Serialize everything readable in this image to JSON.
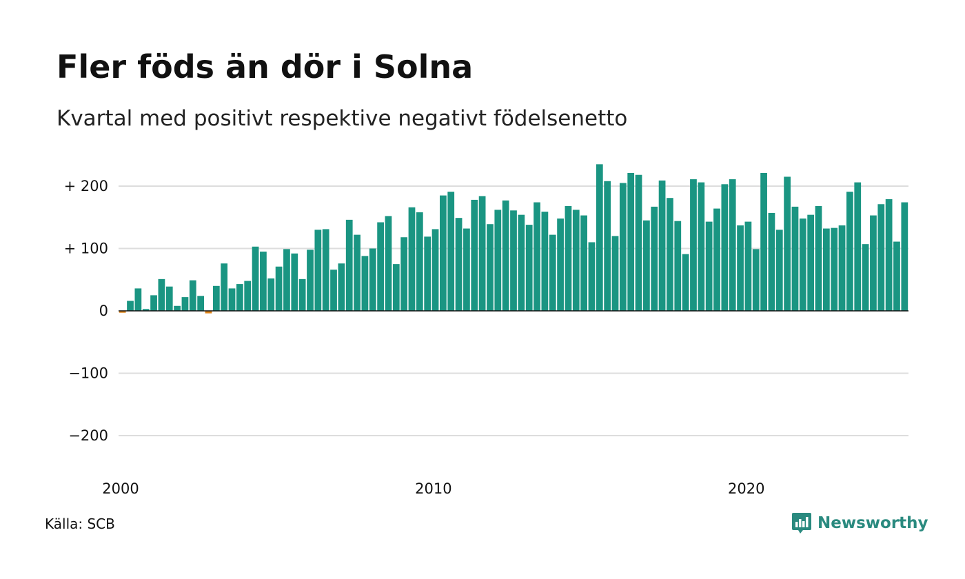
{
  "title": "Fler föds än dör i Solna",
  "subtitle": "Kvartal med positivt respektive negativt födelsenetto",
  "source": "Källa: SCB",
  "brand": {
    "name": "Newsworthy",
    "icon": "newsworthy-chart-bubble-icon",
    "color": "#2a8a7f"
  },
  "colors": {
    "positive": "#1a9582",
    "negative": "#e0861a",
    "grid": "#dddddd",
    "zero_line": "#111111"
  },
  "chart_data": {
    "type": "bar",
    "grid": true,
    "x_start": 2000,
    "step": 0.25,
    "xlim": [
      2000,
      2025.25
    ],
    "ylim": [
      -240,
      240
    ],
    "yticks": [
      200,
      100,
      0,
      -100,
      -200
    ],
    "ytick_labels": [
      "+ 200",
      "+ 100",
      "0",
      "−100",
      "−200"
    ],
    "xticks": [
      2000,
      2010,
      2020
    ],
    "xtick_labels": [
      "2000",
      "2010",
      "2020"
    ],
    "values": [
      -3,
      16,
      36,
      3,
      25,
      51,
      39,
      8,
      22,
      49,
      24,
      -4,
      40,
      76,
      36,
      43,
      48,
      103,
      95,
      52,
      71,
      99,
      92,
      51,
      98,
      130,
      131,
      66,
      76,
      146,
      122,
      88,
      100,
      142,
      152,
      75,
      118,
      166,
      158,
      119,
      131,
      185,
      191,
      149,
      132,
      178,
      184,
      139,
      162,
      177,
      161,
      154,
      138,
      174,
      159,
      122,
      148,
      168,
      162,
      153,
      110,
      235,
      208,
      120,
      205,
      221,
      218,
      145,
      167,
      209,
      181,
      144,
      91,
      211,
      206,
      143,
      164,
      203,
      211,
      137,
      143,
      99,
      221,
      157,
      130,
      215,
      167,
      148,
      154,
      168,
      132,
      133,
      137,
      191,
      206,
      107,
      153,
      171,
      179,
      111,
      174
    ]
  }
}
